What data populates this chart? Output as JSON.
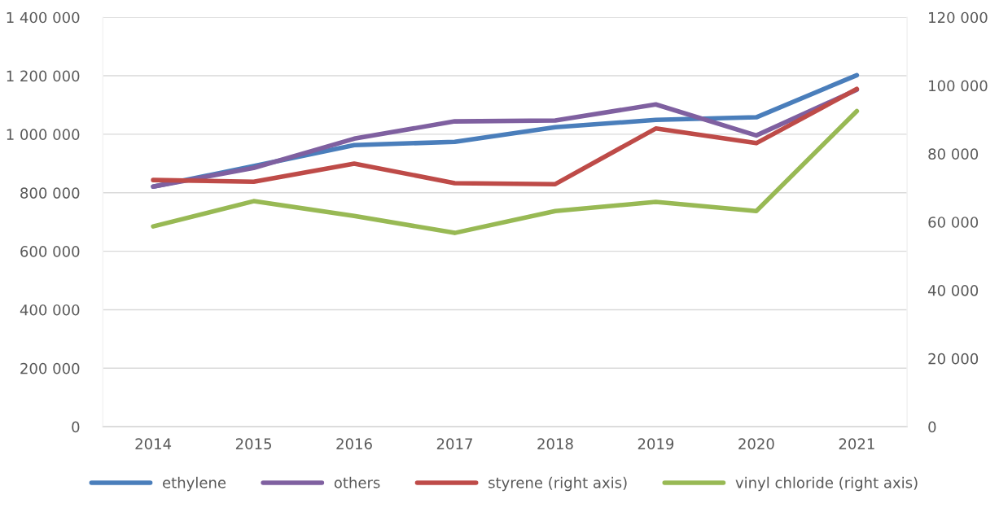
{
  "chart_data": {
    "type": "line",
    "categories": [
      "2014",
      "2015",
      "2016",
      "2017",
      "2018",
      "2019",
      "2020",
      "2021"
    ],
    "series": [
      {
        "name": "ethylene",
        "color": "#4a7ebb",
        "values": [
          821000,
          891000,
          963000,
          974000,
          1024000,
          1049000,
          1058000,
          1202000
        ]
      },
      {
        "name": "others",
        "color": "#7f60a0",
        "values": [
          821000,
          885000,
          985000,
          1044000,
          1047000,
          1102000,
          996000,
          1152000
        ]
      },
      {
        "name": "styrene (right axis)",
        "color": "#be4b48",
        "axis": "y2",
        "values": [
          72300,
          71800,
          77100,
          71400,
          71100,
          87400,
          83100,
          99000
        ]
      },
      {
        "name": "vinyl chloride (right axis)",
        "color": "#98b954",
        "axis": "y2",
        "values": [
          58700,
          66100,
          61800,
          56800,
          63200,
          65900,
          63200,
          92500
        ]
      }
    ],
    "ylim": [
      0,
      1400000
    ],
    "yticks": [
      {
        "value": 0,
        "label": "0"
      },
      {
        "value": 200000,
        "label": "200 000"
      },
      {
        "value": 400000,
        "label": "400 000"
      },
      {
        "value": 600000,
        "label": "600 000"
      },
      {
        "value": 800000,
        "label": "800 000"
      },
      {
        "value": 1000000,
        "label": "1 000 000"
      },
      {
        "value": 1200000,
        "label": "1 200 000"
      },
      {
        "value": 1400000,
        "label": "1 400 000"
      }
    ],
    "y2lim": [
      0,
      120000
    ],
    "y2ticks": [
      {
        "value": 0,
        "label": "0"
      },
      {
        "value": 20000,
        "label": "20 000"
      },
      {
        "value": 40000,
        "label": "40 000"
      },
      {
        "value": 60000,
        "label": "60 000"
      },
      {
        "value": 80000,
        "label": "80 000"
      },
      {
        "value": 100000,
        "label": "100 000"
      },
      {
        "value": 120000,
        "label": "120 000"
      }
    ],
    "grid": "y",
    "legend": "bottom",
    "marker": "none",
    "line_style": "solid"
  }
}
